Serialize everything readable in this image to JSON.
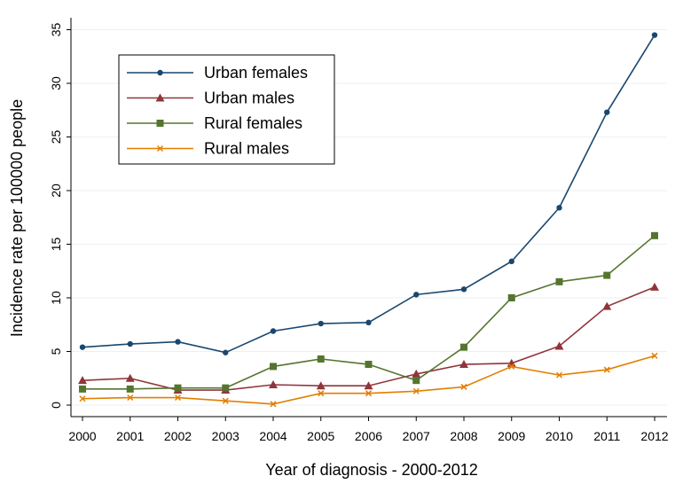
{
  "chart_data": {
    "type": "line",
    "title": "",
    "xlabel": "Year of diagnosis - 2000-2012",
    "ylabel": "Incidence rate per 100000 people",
    "categories": [
      "2000",
      "2001",
      "2002",
      "2003",
      "2004",
      "2005",
      "2006",
      "2007",
      "2008",
      "2009",
      "2010",
      "2011",
      "2012"
    ],
    "ylim": [
      0,
      35
    ],
    "yticks": [
      0,
      5,
      10,
      15,
      20,
      25,
      30,
      35
    ],
    "ytick_labels": [
      "0",
      "5",
      "10",
      "15",
      "20",
      "25",
      "30",
      "35"
    ],
    "grid": "y",
    "legend_position": "top-left",
    "series": [
      {
        "name": "Urban females",
        "color": "#1a476f",
        "marker": "circle",
        "values": [
          5.4,
          5.7,
          5.9,
          4.9,
          6.9,
          7.6,
          7.7,
          10.3,
          10.8,
          13.4,
          18.4,
          27.3,
          34.5
        ]
      },
      {
        "name": "Urban males",
        "color": "#90353b",
        "marker": "triangle",
        "values": [
          2.3,
          2.5,
          1.4,
          1.4,
          1.9,
          1.8,
          1.8,
          2.9,
          3.8,
          3.9,
          5.5,
          9.2,
          11.0
        ]
      },
      {
        "name": "Rural females",
        "color": "#55752f",
        "marker": "square",
        "values": [
          1.5,
          1.5,
          1.6,
          1.6,
          3.6,
          4.3,
          3.8,
          2.3,
          5.4,
          10.0,
          11.5,
          12.1,
          15.8
        ]
      },
      {
        "name": "Rural males",
        "color": "#e37e00",
        "marker": "x",
        "values": [
          0.6,
          0.7,
          0.7,
          0.4,
          0.1,
          1.1,
          1.1,
          1.3,
          1.7,
          3.6,
          2.8,
          3.3,
          4.6
        ]
      }
    ]
  }
}
